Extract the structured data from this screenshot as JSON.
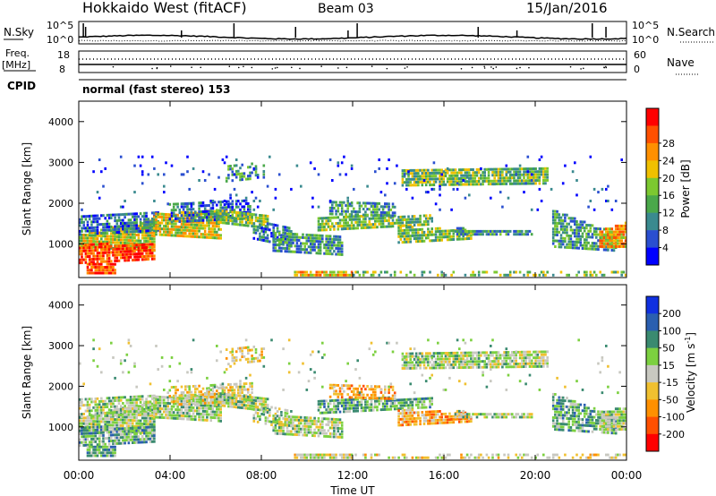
{
  "header": {
    "title": "Hokkaido West (fitACF)",
    "beam": "Beam 03",
    "date": "15/Jan/2016"
  },
  "noise_panel": {
    "left_label": "N.Sky",
    "right_label": "N.Search",
    "left_ticks": [
      "10^5",
      "10^0"
    ],
    "right_ticks": [
      "10^5",
      "10^0"
    ]
  },
  "freq_panel": {
    "left_label_1": "Freq.",
    "left_label_2": "[MHz]",
    "right_label": "Nave",
    "left_ticks": [
      "18",
      "8"
    ],
    "right_ticks": [
      "60",
      "0"
    ]
  },
  "cpid": {
    "label": "CPID",
    "mode": "normal (fast stereo) 153"
  },
  "chart_data": [
    {
      "type": "heatmap",
      "name": "power",
      "ylabel": "Slant Range [km]",
      "ylim": [
        180,
        4500
      ],
      "xlim": [
        0,
        24
      ],
      "yticks": [
        "1000",
        "2000",
        "3000",
        "4000"
      ],
      "colorbar": {
        "label": "Power [dB]",
        "ticks": [
          "4",
          "8",
          "12",
          "16",
          "20",
          "24",
          "28"
        ],
        "range": [
          0,
          30
        ],
        "colors": [
          "#0000ff",
          "#2a4fd0",
          "#3a8a8f",
          "#4aa84a",
          "#7cc830",
          "#f0c000",
          "#ff9000",
          "#ff5000",
          "#ff0000"
        ]
      }
    },
    {
      "type": "heatmap",
      "name": "velocity",
      "ylabel": "Slant Range [km]",
      "ylim": [
        180,
        4500
      ],
      "xlim": [
        0,
        24
      ],
      "yticks": [
        "1000",
        "2000",
        "3000",
        "4000"
      ],
      "colorbar": {
        "label": "Velocity [m s^-1]",
        "ticks": [
          "200",
          "100",
          "50",
          "15",
          "-15",
          "-50",
          "-100",
          "-200"
        ],
        "colors": [
          "#1030e0",
          "#2a5fb0",
          "#3a8a70",
          "#7cd040",
          "#c8c8c0",
          "#f0c030",
          "#ff9000",
          "#ff5000",
          "#ff0000"
        ]
      }
    }
  ],
  "x_axis": {
    "ticks": [
      "00:00",
      "04:00",
      "08:00",
      "12:00",
      "16:00",
      "20:00",
      "00:00"
    ],
    "label": "Time UT"
  }
}
